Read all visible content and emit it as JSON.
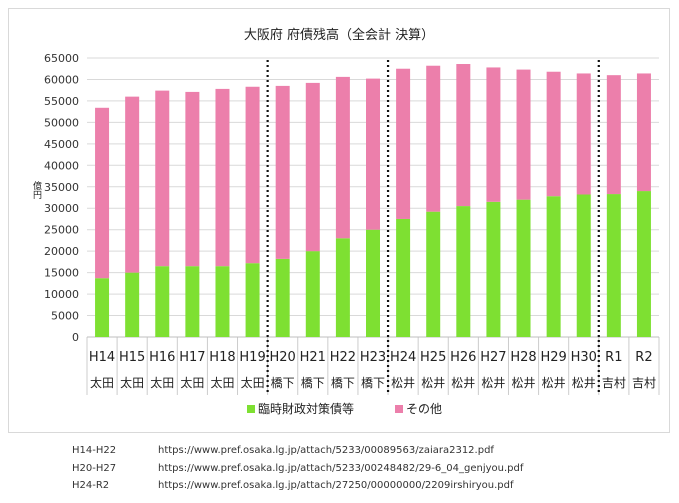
{
  "chart_data": {
    "type": "bar",
    "stacked": true,
    "title": "大阪府 府債残高（全会計 決算）",
    "ylabel": "億円",
    "ylim": [
      0,
      65000
    ],
    "yticks": [
      0,
      5000,
      10000,
      15000,
      20000,
      25000,
      30000,
      35000,
      40000,
      45000,
      50000,
      55000,
      60000,
      65000
    ],
    "grid": true,
    "categories": [
      "H14",
      "H15",
      "H16",
      "H17",
      "H18",
      "H19",
      "H20",
      "H21",
      "H22",
      "H23",
      "H24",
      "H25",
      "H26",
      "H27",
      "H28",
      "H29",
      "H30",
      "R1",
      "R2"
    ],
    "governors": [
      "太田",
      "太田",
      "太田",
      "太田",
      "太田",
      "太田",
      "橋下",
      "橋下",
      "橋下",
      "橋下",
      "松井",
      "松井",
      "松井",
      "松井",
      "松井",
      "松井",
      "松井",
      "吉村",
      "吉村"
    ],
    "dividers_after": [
      "H19",
      "H23",
      "H30"
    ],
    "series": [
      {
        "name": "臨時財政対策債等",
        "color": "#7ee032",
        "values": [
          13700,
          15000,
          16500,
          16500,
          16500,
          17200,
          18200,
          20000,
          23000,
          25000,
          27500,
          29200,
          30500,
          31500,
          32000,
          32800,
          33200,
          33300,
          34000
        ]
      },
      {
        "name": "その他",
        "color": "#ec7fab",
        "values": [
          39700,
          41000,
          40900,
          40600,
          41300,
          41100,
          40300,
          39200,
          37600,
          35200,
          35000,
          34000,
          33100,
          31300,
          30300,
          29000,
          28200,
          27700,
          27400
        ]
      }
    ],
    "legend_position": "bottom"
  },
  "sources": [
    {
      "range": "H14-H22",
      "url": "https://www.pref.osaka.lg.jp/attach/5233/00089563/zaiara2312.pdf"
    },
    {
      "range": "H20-H27",
      "url": "https://www.pref.osaka.lg.jp/attach/5233/00248482/29-6_04_genjyou.pdf"
    },
    {
      "range": "H24-R2",
      "url": "https://www.pref.osaka.lg.jp/attach/27250/00000000/2209irshiryou.pdf"
    }
  ]
}
